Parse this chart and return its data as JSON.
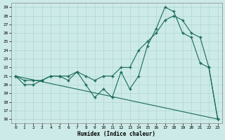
{
  "xlabel": "Humidex (Indice chaleur)",
  "bg_color": "#cceae7",
  "grid_color": "#b0d8d4",
  "line_color": "#1a6b5a",
  "xlim": [
    -0.5,
    23.5
  ],
  "ylim": [
    15.5,
    29.5
  ],
  "yticks": [
    16,
    17,
    18,
    19,
    20,
    21,
    22,
    23,
    24,
    25,
    26,
    27,
    28,
    29
  ],
  "xticks": [
    0,
    1,
    2,
    3,
    4,
    5,
    6,
    7,
    8,
    9,
    10,
    11,
    12,
    13,
    14,
    15,
    16,
    17,
    18,
    19,
    20,
    21,
    22,
    23
  ],
  "series": [
    {
      "x": [
        0,
        1,
        2,
        3,
        4,
        5,
        6,
        7,
        8,
        9,
        10,
        11,
        12,
        13,
        14,
        15,
        16,
        17,
        18,
        19,
        20,
        21,
        22,
        23
      ],
      "y": [
        21,
        20,
        20,
        20.5,
        21,
        21,
        20.5,
        21.5,
        20,
        18.5,
        19.5,
        18.5,
        21.5,
        19.5,
        21,
        24.5,
        26.5,
        29,
        28.5,
        26,
        25.5,
        22.5,
        22,
        16
      ]
    },
    {
      "x": [
        0,
        1,
        2,
        3,
        4,
        5,
        6,
        7,
        8,
        9,
        10,
        11,
        12,
        13,
        14,
        15,
        16,
        17,
        18,
        19,
        20,
        21,
        22,
        23
      ],
      "y": [
        21,
        20.5,
        20.5,
        20.5,
        21,
        21,
        21,
        21.5,
        21,
        20.5,
        21,
        21,
        22,
        22,
        24,
        25,
        26,
        27.5,
        28,
        27.5,
        26,
        25.5,
        22,
        16
      ]
    },
    {
      "x": [
        0,
        23
      ],
      "y": [
        21,
        16
      ]
    }
  ]
}
